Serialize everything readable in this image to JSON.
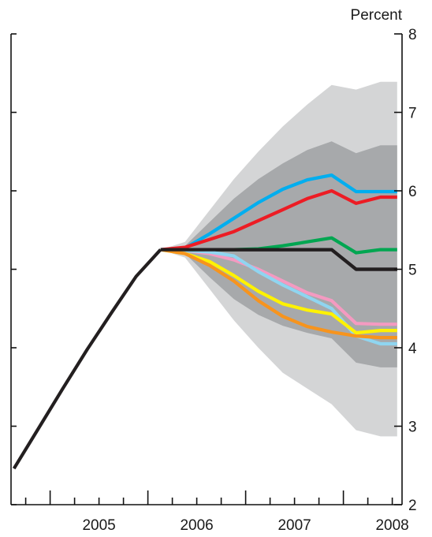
{
  "chart_data": {
    "type": "line",
    "ylabel": "Percent",
    "ylim": [
      2,
      8
    ],
    "yticks": [
      2,
      3,
      4,
      5,
      6,
      7,
      8
    ],
    "xlim": [
      2004.6,
      2008.6
    ],
    "xticks": [
      "2005",
      "2006",
      "2007",
      "2008"
    ],
    "grid": false,
    "legend": "none",
    "history": {
      "x": [
        2004.63,
        2004.88,
        2005.13,
        2005.38,
        2005.63,
        2005.88,
        2006.13
      ],
      "y": [
        2.46,
        2.97,
        3.48,
        3.98,
        4.45,
        4.91,
        5.25
      ]
    },
    "fan_outer": {
      "x": [
        2006.13,
        2006.38,
        2006.63,
        2006.88,
        2007.13,
        2007.38,
        2007.63,
        2007.88,
        2008.13,
        2008.38,
        2008.55
      ],
      "upper": [
        5.25,
        5.35,
        5.75,
        6.15,
        6.5,
        6.82,
        7.1,
        7.35,
        7.29,
        7.39,
        7.39
      ],
      "lower": [
        5.25,
        5.15,
        4.75,
        4.35,
        4.0,
        3.68,
        3.48,
        3.28,
        2.95,
        2.87,
        2.87
      ],
      "color": "#d4d5d6"
    },
    "fan_inner": {
      "x": [
        2006.13,
        2006.38,
        2006.63,
        2006.88,
        2007.13,
        2007.38,
        2007.63,
        2007.88,
        2008.13,
        2008.38,
        2008.55
      ],
      "upper": [
        5.25,
        5.3,
        5.6,
        5.9,
        6.15,
        6.35,
        6.52,
        6.63,
        6.48,
        6.58,
        6.58
      ],
      "lower": [
        5.25,
        5.2,
        4.9,
        4.62,
        4.42,
        4.28,
        4.19,
        4.12,
        3.81,
        3.75,
        3.75
      ],
      "color": "#a7a9ab"
    },
    "series": [
      {
        "color": "#00aeef",
        "x": [
          2006.13,
          2006.38,
          2006.63,
          2006.88,
          2007.13,
          2007.38,
          2007.63,
          2007.88,
          2008.13,
          2008.38,
          2008.55
        ],
        "values": [
          5.25,
          5.27,
          5.45,
          5.65,
          5.85,
          6.02,
          6.14,
          6.2,
          5.99,
          5.99,
          5.99
        ]
      },
      {
        "color": "#ed1c24",
        "x": [
          2006.13,
          2006.38,
          2006.63,
          2006.88,
          2007.13,
          2007.38,
          2007.63,
          2007.88,
          2008.13,
          2008.38,
          2008.55
        ],
        "values": [
          5.25,
          5.28,
          5.38,
          5.48,
          5.62,
          5.76,
          5.9,
          6.0,
          5.84,
          5.92,
          5.92
        ]
      },
      {
        "color": "#00a651",
        "x": [
          2006.13,
          2006.38,
          2006.63,
          2006.88,
          2007.13,
          2007.38,
          2007.63,
          2007.88,
          2008.13,
          2008.38,
          2008.55
        ],
        "values": [
          5.25,
          5.25,
          5.25,
          5.25,
          5.26,
          5.3,
          5.35,
          5.4,
          5.21,
          5.25,
          5.25
        ]
      },
      {
        "color": "#231f20",
        "x": [
          2006.13,
          2006.38,
          2006.63,
          2006.88,
          2007.13,
          2007.38,
          2007.63,
          2007.88,
          2008.13,
          2008.38,
          2008.55
        ],
        "values": [
          5.25,
          5.25,
          5.25,
          5.25,
          5.25,
          5.25,
          5.25,
          5.25,
          5.0,
          5.0,
          5.0
        ]
      },
      {
        "color": "#f49ac1",
        "x": [
          2006.13,
          2006.38,
          2006.63,
          2006.88,
          2007.13,
          2007.38,
          2007.63,
          2007.88,
          2008.13,
          2008.38,
          2008.55
        ],
        "values": [
          5.25,
          5.24,
          5.2,
          5.12,
          5.0,
          4.85,
          4.7,
          4.6,
          4.31,
          4.3,
          4.3
        ]
      },
      {
        "color": "#8fd5f0",
        "x": [
          2006.13,
          2006.38,
          2006.63,
          2006.88,
          2007.13,
          2007.38,
          2007.63,
          2007.88,
          2008.13,
          2008.38,
          2008.55
        ],
        "values": [
          5.25,
          5.24,
          5.22,
          5.17,
          4.97,
          4.8,
          4.65,
          4.5,
          4.15,
          4.05,
          4.05
        ]
      },
      {
        "color": "#fff200",
        "x": [
          2006.13,
          2006.38,
          2006.63,
          2006.88,
          2007.13,
          2007.38,
          2007.63,
          2007.88,
          2008.13,
          2008.38,
          2008.55
        ],
        "values": [
          5.25,
          5.2,
          5.1,
          4.92,
          4.72,
          4.56,
          4.48,
          4.43,
          4.19,
          4.22,
          4.22
        ]
      },
      {
        "color": "#f7941d",
        "x": [
          2006.13,
          2006.38,
          2006.63,
          2006.88,
          2007.13,
          2007.38,
          2007.63,
          2007.88,
          2008.13,
          2008.38,
          2008.55
        ],
        "values": [
          5.25,
          5.2,
          5.05,
          4.85,
          4.6,
          4.4,
          4.27,
          4.2,
          4.15,
          4.13,
          4.13
        ]
      },
      {
        "color": "#231f20",
        "x": [
          2006.13,
          2006.38,
          2006.63,
          2006.88,
          2007.13,
          2007.38,
          2007.63,
          2007.88,
          2008.13,
          2008.38,
          2008.55
        ],
        "values": [
          5.25,
          5.25,
          5.25,
          5.25,
          5.25,
          5.25,
          5.25,
          5.25,
          5.0,
          5.0,
          5.0
        ]
      }
    ]
  }
}
